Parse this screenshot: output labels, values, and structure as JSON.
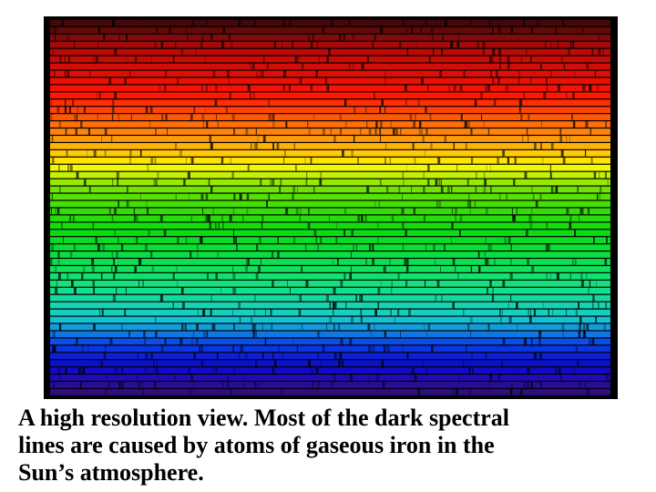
{
  "caption": {
    "lines": [
      "A high resolution view. Most of the dark spectral",
      "lines are caused by atoms of gaseous iron in the",
      "Sun’s atmosphere."
    ]
  }
}
